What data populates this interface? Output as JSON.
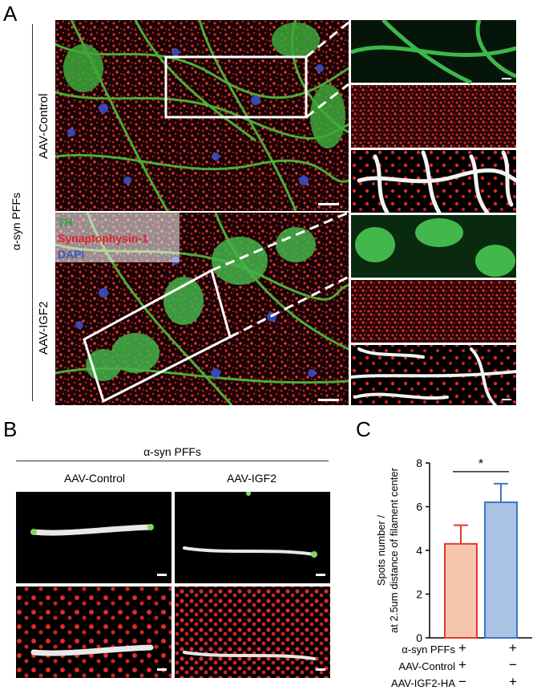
{
  "panelA": {
    "letter": "A",
    "group_label": "α-syn PFFs",
    "rows": [
      "AAV-Control",
      "AAV-IGF2"
    ],
    "legend": [
      {
        "label": "TH",
        "color": "#2fa34a"
      },
      {
        "label": "Synaptophysin-1",
        "color": "#e0202e"
      },
      {
        "label": "DAPI",
        "color": "#3a55c8"
      }
    ]
  },
  "panelB": {
    "letter": "B",
    "group_label": "α-syn PFFs",
    "columns": [
      "AAV-Control",
      "AAV-IGF2"
    ]
  },
  "panelC": {
    "letter": "C",
    "significance": "*",
    "condition_rows": [
      {
        "label": "α-syn PFFs",
        "values": [
          "+",
          "+"
        ]
      },
      {
        "label": "AAV-Control",
        "values": [
          "+",
          "−"
        ]
      },
      {
        "label": "AAV-IGF2-HA",
        "values": [
          "−",
          "+"
        ]
      }
    ]
  },
  "chart_data": {
    "type": "bar",
    "categories": [
      "AAV-Control",
      "AAV-IGF2-HA"
    ],
    "values": [
      4.3,
      6.2
    ],
    "errors": [
      0.85,
      0.85
    ],
    "colors": [
      {
        "fill": "#f5c5ae",
        "stroke": "#e03b2a"
      },
      {
        "fill": "#a9c3e3",
        "stroke": "#3b78c4"
      }
    ],
    "ylabel": "Spots number /\nat 2.5um distance of filament center",
    "ylim": [
      0,
      8
    ],
    "yticks": [
      0,
      2,
      4,
      6,
      8
    ],
    "grid": false,
    "legend": "none"
  }
}
